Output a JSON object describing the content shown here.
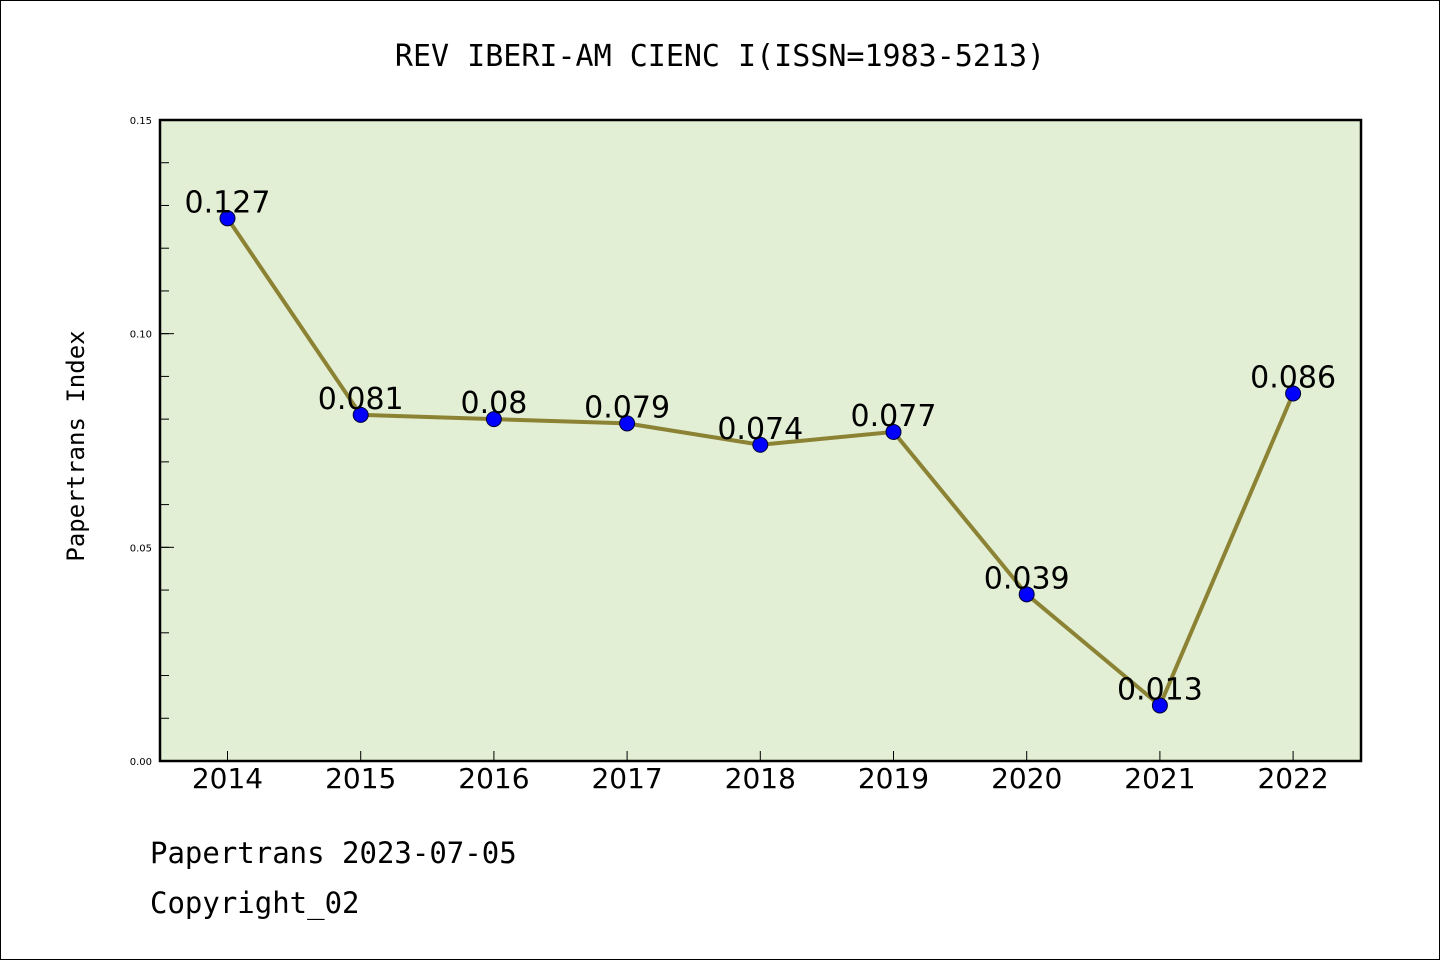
{
  "chart_data": {
    "type": "line",
    "title": "REV IBERI-AM CIENC I(ISSN=1983-5213)",
    "ylabel": "Papertrans Index",
    "xlabel": "",
    "categories": [
      "2014",
      "2015",
      "2016",
      "2017",
      "2018",
      "2019",
      "2020",
      "2021",
      "2022"
    ],
    "values": [
      0.127,
      0.081,
      0.08,
      0.079,
      0.074,
      0.077,
      0.039,
      0.013,
      0.086
    ],
    "value_labels": [
      "0.127",
      "0.081",
      "0.08",
      "0.079",
      "0.074",
      "0.077",
      "0.039",
      "0.013",
      "0.086"
    ],
    "ylim": [
      0,
      0.15
    ],
    "yticks": [
      {
        "value": 0,
        "label": "0.00"
      },
      {
        "value": 0.05,
        "label": "0.05"
      },
      {
        "value": 0.1,
        "label": "0.10"
      },
      {
        "value": 0.15,
        "label": "0.15"
      }
    ],
    "grid": false,
    "colors": {
      "plot_background": "#e2efd4",
      "line": "#8c8234",
      "marker": "#0000ff"
    }
  },
  "footer": {
    "line1": "Papertrans 2023-07-05",
    "line2": "Copyright_02"
  }
}
